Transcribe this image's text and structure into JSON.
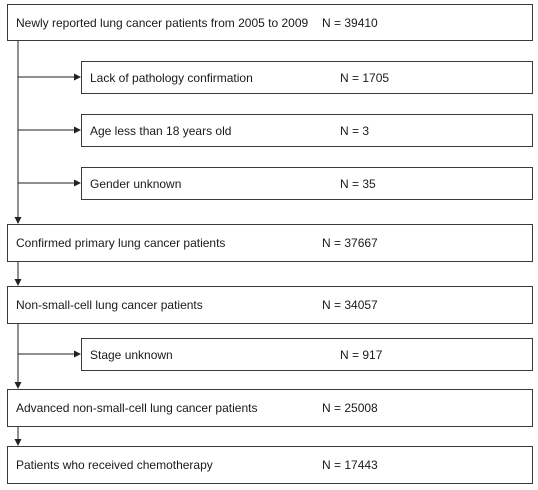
{
  "main_flow": [
    {
      "label": "Newly reported lung cancer patients from 2005 to 2009",
      "count": "N = 39410"
    },
    {
      "label": "Confirmed primary lung cancer patients",
      "count": "N = 37667"
    },
    {
      "label": "Non-small-cell lung cancer patients",
      "count": "N = 34057"
    },
    {
      "label": "Advanced non-small-cell lung cancer patients",
      "count": "N = 25008"
    },
    {
      "label": "Patients who received chemotherapy",
      "count": "N = 17443"
    }
  ],
  "exclusions": [
    {
      "label": "Lack of pathology confirmation",
      "count": "N = 1705"
    },
    {
      "label": "Age less than 18 years old",
      "count": "N = 3"
    },
    {
      "label": "Gender unknown",
      "count": "N = 35"
    },
    {
      "label": "Stage unknown",
      "count": "N = 917"
    }
  ]
}
